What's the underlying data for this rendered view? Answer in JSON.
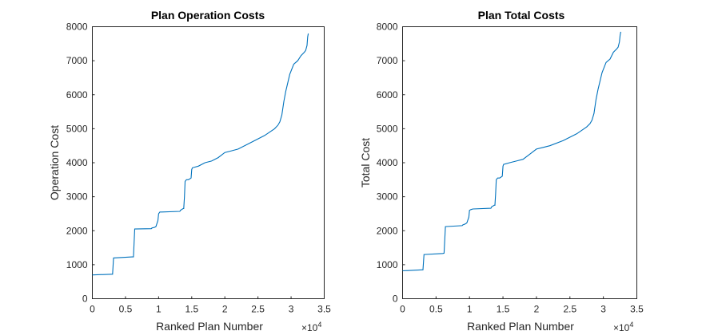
{
  "colors": {
    "series": "#0072BD",
    "axis": "#262626"
  },
  "chart_data": [
    {
      "type": "line",
      "title": "Plan Operation Costs",
      "xlabel": "Ranked Plan Number",
      "ylabel": "Operation Cost",
      "xlim": [
        0,
        35000
      ],
      "ylim": [
        0,
        8000
      ],
      "x_ticks": [
        0,
        0.5,
        1,
        1.5,
        2,
        2.5,
        3,
        3.5
      ],
      "x_tick_labels": [
        "0",
        "0.5",
        "1",
        "1.5",
        "2",
        "2.5",
        "3",
        "3.5"
      ],
      "x_multiplier_base": "×10",
      "x_multiplier_exp": "4",
      "y_ticks": [
        0,
        1000,
        2000,
        3000,
        4000,
        5000,
        6000,
        7000,
        8000
      ],
      "y_tick_labels": [
        "0",
        "1000",
        "2000",
        "3000",
        "4000",
        "5000",
        "6000",
        "7000",
        "8000"
      ],
      "grid": false,
      "x": [
        0,
        2900,
        3050,
        3200,
        6000,
        6200,
        6400,
        8900,
        9000,
        9400,
        9600,
        9900,
        10000,
        10200,
        10500,
        13200,
        13300,
        13700,
        13800,
        13900,
        14000,
        14200,
        14300,
        14500,
        14900,
        15000,
        15100,
        16000,
        17000,
        18000,
        19000,
        20000,
        21000,
        22000,
        24000,
        26000,
        27500,
        28000,
        28300,
        28600,
        28900,
        29200,
        29800,
        30400,
        31000,
        31500,
        32000,
        32200,
        32400,
        32500,
        32600
      ],
      "y": [
        700,
        720,
        720,
        1200,
        1230,
        1230,
        2050,
        2060,
        2080,
        2100,
        2120,
        2300,
        2500,
        2550,
        2550,
        2570,
        2600,
        2650,
        2650,
        3000,
        3450,
        3500,
        3500,
        3500,
        3550,
        3800,
        3850,
        3900,
        4000,
        4050,
        4150,
        4300,
        4350,
        4400,
        4600,
        4800,
        5000,
        5100,
        5200,
        5400,
        5800,
        6100,
        6600,
        6900,
        7000,
        7150,
        7250,
        7300,
        7450,
        7700,
        7800
      ]
    },
    {
      "type": "line",
      "title": "Plan Total Costs",
      "xlabel": "Ranked Plan Number",
      "ylabel": "Total Cost",
      "xlim": [
        0,
        35000
      ],
      "ylim": [
        0,
        8000
      ],
      "x_ticks": [
        0,
        0.5,
        1,
        1.5,
        2,
        2.5,
        3,
        3.5
      ],
      "x_tick_labels": [
        "0",
        "0.5",
        "1",
        "1.5",
        "2",
        "2.5",
        "3",
        "3.5"
      ],
      "x_multiplier_base": "×10",
      "x_multiplier_exp": "4",
      "y_ticks": [
        0,
        1000,
        2000,
        3000,
        4000,
        5000,
        6000,
        7000,
        8000
      ],
      "y_tick_labels": [
        "0",
        "1000",
        "2000",
        "3000",
        "4000",
        "5000",
        "6000",
        "7000",
        "8000"
      ],
      "grid": false,
      "x": [
        0,
        2900,
        3050,
        3200,
        6000,
        6200,
        6400,
        8900,
        9000,
        9400,
        9600,
        9900,
        10000,
        10200,
        10500,
        13200,
        13300,
        13700,
        13800,
        13900,
        14000,
        14200,
        14300,
        14500,
        14900,
        15000,
        15100,
        16000,
        17000,
        18000,
        19000,
        20000,
        21000,
        22000,
        24000,
        26000,
        27500,
        28000,
        28300,
        28600,
        28900,
        29200,
        29800,
        30400,
        31000,
        31500,
        32000,
        32200,
        32400,
        32500,
        32600
      ],
      "y": [
        820,
        850,
        850,
        1300,
        1330,
        1340,
        2120,
        2150,
        2170,
        2200,
        2230,
        2400,
        2600,
        2620,
        2640,
        2660,
        2700,
        2750,
        2750,
        3100,
        3500,
        3550,
        3550,
        3550,
        3600,
        3900,
        3950,
        4000,
        4050,
        4100,
        4250,
        4400,
        4450,
        4500,
        4650,
        4850,
        5050,
        5150,
        5250,
        5450,
        5850,
        6150,
        6650,
        6950,
        7050,
        7250,
        7350,
        7400,
        7550,
        7750,
        7850
      ]
    }
  ]
}
